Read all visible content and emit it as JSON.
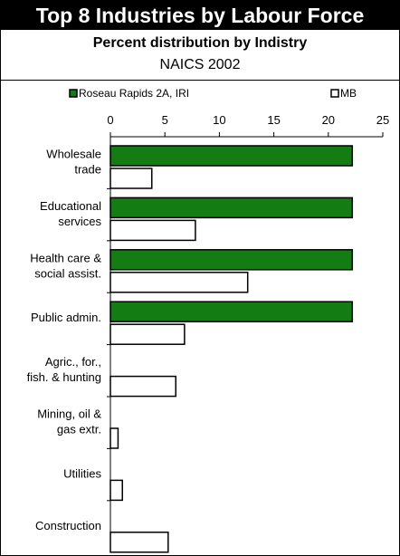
{
  "title": "Top 8 Industries by Labour Force",
  "subtitle": "Percent distribution by Indistry",
  "subtitle2": "NAICS 2002",
  "colors": {
    "series1": "#137d13",
    "series2": "#ffffff",
    "stroke": "#000000"
  },
  "chart_data": {
    "type": "bar",
    "orientation": "horizontal",
    "categories": [
      [
        "Wholesale",
        "trade"
      ],
      [
        "Educational",
        "services"
      ],
      [
        "Health care &",
        "social assist."
      ],
      [
        "Public admin."
      ],
      [
        "Agric., for.,",
        "fish. & hunting"
      ],
      [
        "Mining, oil &",
        "gas extr."
      ],
      [
        "Utilities"
      ],
      [
        "Construction"
      ]
    ],
    "series": [
      {
        "name": "Roseau Rapids 2A, IRI",
        "values": [
          22.2,
          22.2,
          22.2,
          22.2,
          0,
          0,
          0,
          0
        ]
      },
      {
        "name": "MB",
        "values": [
          3.8,
          7.8,
          12.6,
          6.8,
          6.0,
          0.7,
          1.1,
          5.3
        ]
      }
    ],
    "xlim": [
      0,
      25
    ],
    "xticks": [
      "0",
      "5",
      "10",
      "15",
      "20",
      "25"
    ],
    "legend_position": "top"
  }
}
